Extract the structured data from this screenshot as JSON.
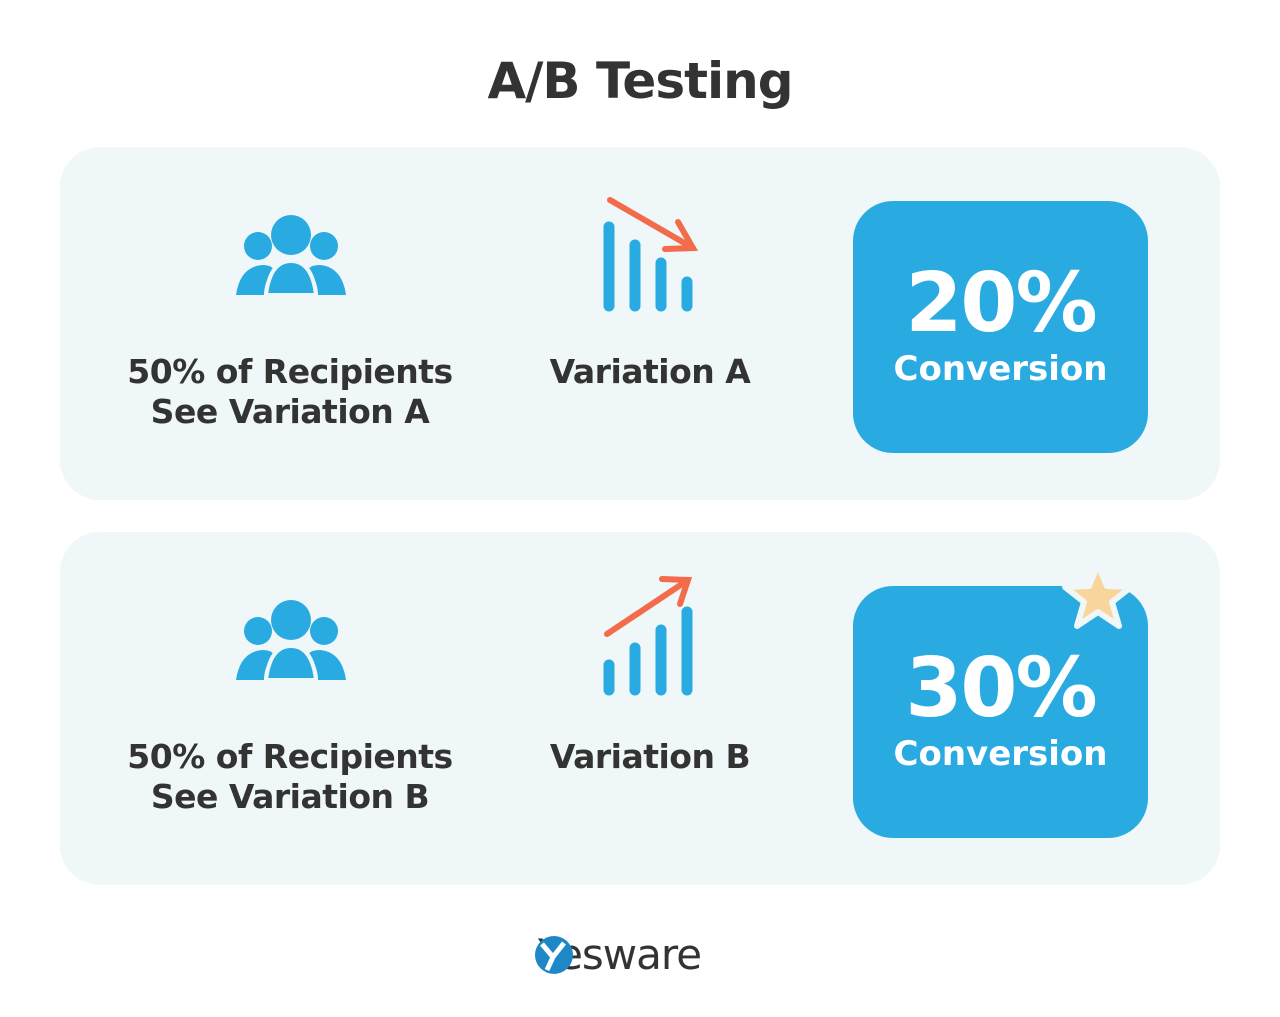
{
  "title": "A/B Testing",
  "rows": [
    {
      "audience": "50% of Recipients",
      "audience_line2": "See Variation A",
      "variation": "Variation A",
      "percent": "20%",
      "metric": "Conversion",
      "trend": "down",
      "winner": false
    },
    {
      "audience": "50% of Recipients",
      "audience_line2": "See Variation B",
      "variation": "Variation B",
      "percent": "30%",
      "metric": "Conversion",
      "trend": "up",
      "winner": true
    }
  ],
  "brand": "Yesware",
  "colors": {
    "accent": "#29abe2",
    "arrow": "#f26b4a",
    "star": "#f7d59b",
    "panel": "#eff7f8",
    "text": "#333333"
  }
}
